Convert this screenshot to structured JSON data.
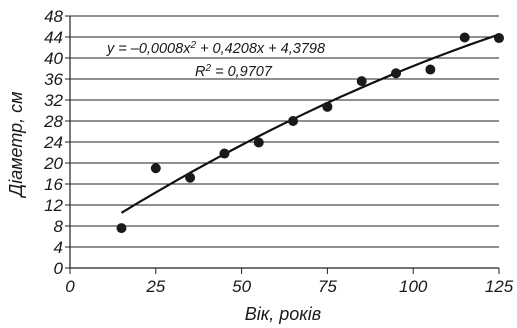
{
  "chart_data": {
    "type": "scatter",
    "title": "",
    "xlabel": "Вік, років",
    "ylabel": "Діаметр, см",
    "xlim": [
      0,
      125
    ],
    "ylim": [
      0,
      48
    ],
    "xticks": [
      "0",
      "25",
      "50",
      "75",
      "100",
      "125"
    ],
    "xtick_values": [
      0,
      25,
      50,
      75,
      100,
      125
    ],
    "yticks": [
      "0",
      "4",
      "8",
      "12",
      "16",
      "20",
      "24",
      "28",
      "32",
      "36",
      "40",
      "44",
      "48"
    ],
    "ytick_values": [
      0,
      4,
      8,
      12,
      16,
      20,
      24,
      28,
      32,
      36,
      40,
      44,
      48
    ],
    "grid": "horizontal",
    "series": [
      {
        "x": [
          15,
          25,
          35,
          45,
          55,
          65,
          75,
          85,
          95,
          105,
          115,
          125
        ],
        "y": [
          7.6,
          19,
          17.2,
          21.8,
          23.9,
          28,
          30.7,
          35.6,
          37.1,
          37.8,
          43.9,
          43.8
        ]
      }
    ],
    "trendline": {
      "type": "polynomial",
      "order": 2,
      "coefficients": [
        -0.0008,
        0.4208,
        4.3798
      ],
      "x_range": [
        15,
        125
      ],
      "equation": "y = –0,0008x",
      "equation_sup": "2",
      "equation_tail": " + 0,4208x + 4,3798",
      "r2_prefix": "R",
      "r2_sup": "2",
      "r2_tail": " = 0,9707"
    },
    "colors": {
      "point": "#1a1a1a",
      "line": "#111111",
      "grid": "#222222",
      "text": "#1a1a1a"
    }
  }
}
